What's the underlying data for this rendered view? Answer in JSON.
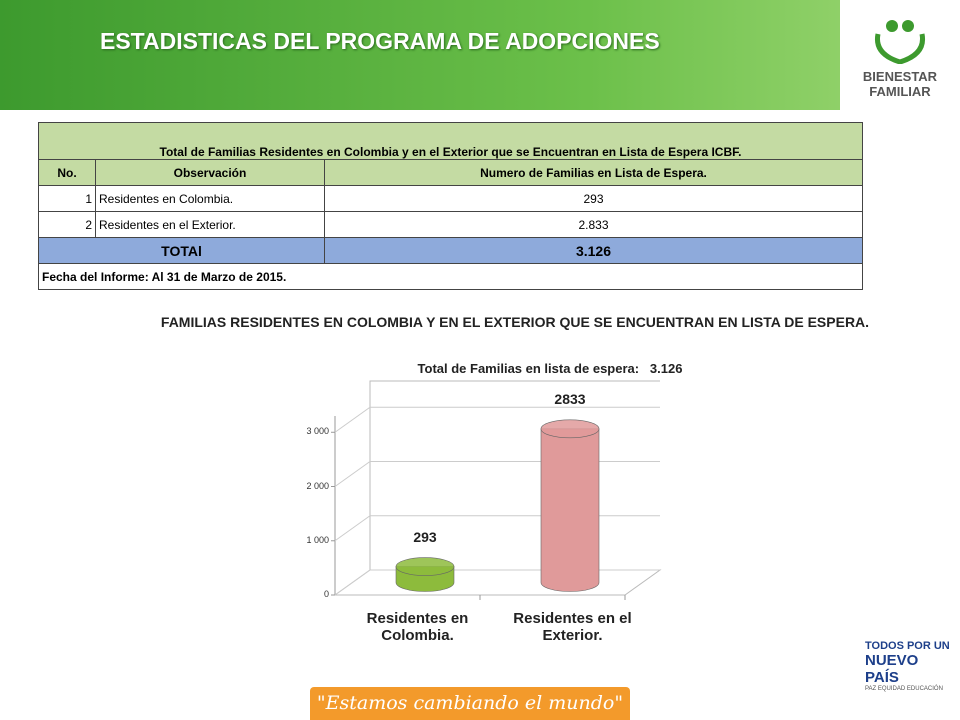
{
  "header": {
    "title": "ESTADISTICAS DEL PROGRAMA DE ADOPCIONES",
    "logo": [
      "BIENESTAR",
      "FAMILIAR"
    ]
  },
  "table": {
    "title": "Total de Familias  Residentes en Colombia y en  el Exterior que se Encuentran en Lista de Espera ICBF.",
    "columns": [
      "No.",
      "Observación",
      "Numero de Familias en Lista de Espera."
    ],
    "rows": [
      [
        "1",
        "Residentes en Colombia.",
        "293"
      ],
      [
        "2",
        "Residentes en el Exterior.",
        "2.833"
      ]
    ],
    "total": [
      "TOTAl",
      "3.126"
    ],
    "note": "Fecha del Informe: Al 31 de Marzo de 2015."
  },
  "chart_data": {
    "type": "bar",
    "title": "FAMILIAS RESIDENTES EN COLOMBIA Y EN EL EXTERIOR QUE SE ENCUENTRAN  EN LISTA DE ESPERA.",
    "subtitle": "Total de Familias en lista de espera:   3.126",
    "categories": [
      "Residentes en Colombia.",
      "Residentes en el Exterior."
    ],
    "values": [
      293,
      2833
    ],
    "colors": [
      "#8dbb3c",
      "#e09a9a"
    ],
    "ylim": [
      0,
      3300
    ],
    "yticks": [
      0,
      {
        "value": 1000,
        "label": "1 000"
      },
      {
        "value": 2000,
        "label": "2 000"
      },
      {
        "value": 3000,
        "label": "3 000"
      }
    ],
    "grid": true
  },
  "footer": {
    "slogan": "\"Estamos cambiando el mundo\"",
    "logo": [
      "TODOS POR UN",
      "NUEVO PAÍS",
      "PAZ EQUIDAD EDUCACIÓN"
    ]
  }
}
